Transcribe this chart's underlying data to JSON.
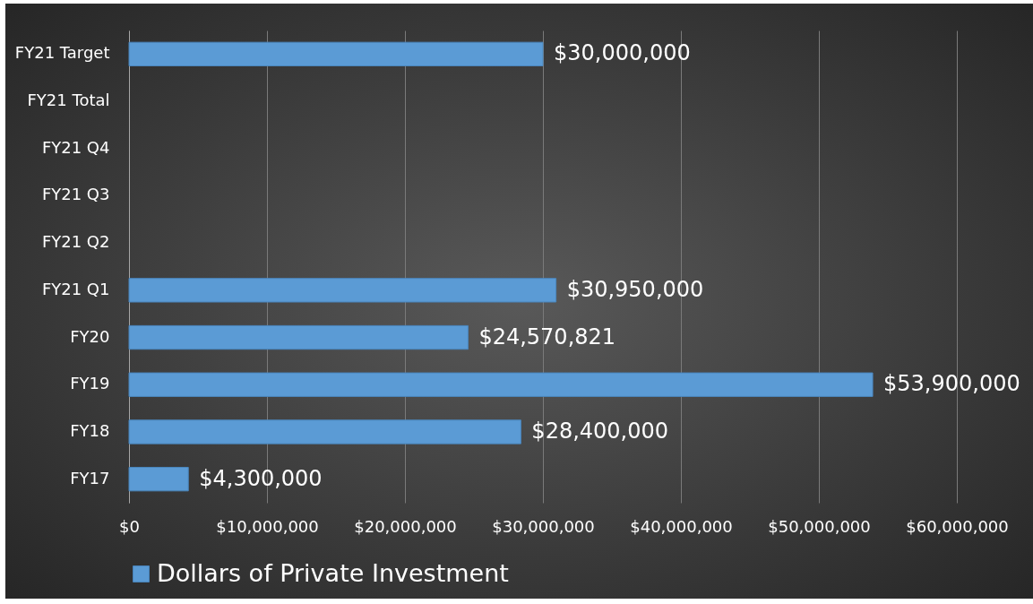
{
  "chart_data": {
    "type": "bar",
    "orientation": "horizontal",
    "categories": [
      "FY21 Target",
      "FY21 Total",
      "FY21 Q4",
      "FY21 Q3",
      "FY21 Q2",
      "FY21 Q1",
      "FY20",
      "FY19",
      "FY18",
      "FY17"
    ],
    "series": [
      {
        "name": "Dollars of Private Investment",
        "color": "#5b9bd5",
        "values": [
          30000000,
          null,
          null,
          null,
          null,
          30950000,
          24570821,
          53900000,
          28400000,
          4300000
        ],
        "value_labels": [
          "$30,000,000",
          null,
          null,
          null,
          null,
          "$30,950,000",
          "$24,570,821",
          "$53,900,000",
          "$28,400,000",
          "$4,300,000"
        ]
      }
    ],
    "xlim": [
      0,
      60000000
    ],
    "xticks": [
      {
        "value": 0,
        "label": "$0"
      },
      {
        "value": 10000000,
        "label": "$10,000,000"
      },
      {
        "value": 20000000,
        "label": "$20,000,000"
      },
      {
        "value": 30000000,
        "label": "$30,000,000"
      },
      {
        "value": 40000000,
        "label": "$40,000,000"
      },
      {
        "value": 50000000,
        "label": "$50,000,000"
      },
      {
        "value": 60000000,
        "label": "$60,000,000"
      }
    ],
    "grid": "x",
    "legend": "bottom"
  }
}
